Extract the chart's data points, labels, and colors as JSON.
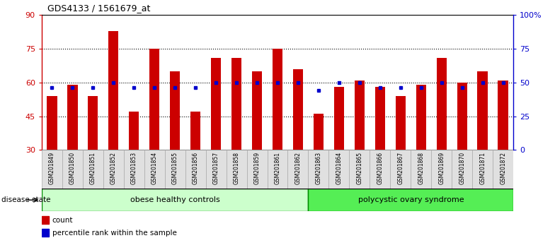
{
  "title": "GDS4133 / 1561679_at",
  "samples": [
    "GSM201849",
    "GSM201850",
    "GSM201851",
    "GSM201852",
    "GSM201853",
    "GSM201854",
    "GSM201855",
    "GSM201856",
    "GSM201857",
    "GSM201858",
    "GSM201859",
    "GSM201861",
    "GSM201862",
    "GSM201863",
    "GSM201864",
    "GSM201865",
    "GSM201866",
    "GSM201867",
    "GSM201868",
    "GSM201869",
    "GSM201870",
    "GSM201871",
    "GSM201872"
  ],
  "counts": [
    54,
    59,
    54,
    83,
    47,
    75,
    65,
    47,
    71,
    71,
    65,
    75,
    66,
    46,
    58,
    61,
    58,
    54,
    59,
    71,
    60,
    65,
    61
  ],
  "percentiles": [
    46,
    46,
    46,
    50,
    46,
    46,
    46,
    46,
    50,
    50,
    50,
    50,
    50,
    44,
    50,
    50,
    46,
    46,
    46,
    50,
    46,
    50,
    50
  ],
  "group1_label": "obese healthy controls",
  "group2_label": "polycystic ovary syndrome",
  "group1_count": 13,
  "group2_count": 10,
  "bar_color": "#cc0000",
  "percentile_color": "#0000cc",
  "ylim_left": [
    30,
    90
  ],
  "ylim_right": [
    0,
    100
  ],
  "yticks_left": [
    30,
    45,
    60,
    75,
    90
  ],
  "yticks_right": [
    0,
    25,
    50,
    75,
    100
  ],
  "ytick_labels_left": [
    "30",
    "45",
    "60",
    "75",
    "90"
  ],
  "ytick_labels_right": [
    "0",
    "25",
    "50",
    "75",
    "100%"
  ],
  "grid_lines": [
    45,
    60,
    75
  ],
  "disease_state_label": "disease state",
  "legend_count_label": "count",
  "legend_percentile_label": "percentile rank within the sample",
  "bg_color": "#ffffff",
  "group1_bg": "#ccffcc",
  "group2_bg": "#55ee55",
  "group1_edge": "#008800",
  "group2_edge": "#008800"
}
